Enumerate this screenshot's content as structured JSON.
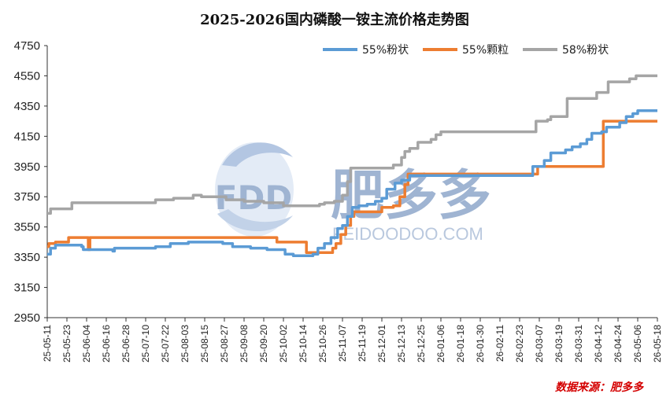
{
  "chart_data": {
    "type": "line",
    "title": "2025-2026国内磷酸一铵主流价格走势图",
    "source": "数据来源：肥多多",
    "watermark": {
      "logo": "FDD",
      "name": "肥多多",
      "url": "FEIDOODOO.COM"
    },
    "ylim": [
      2950,
      4750
    ],
    "yticks": [
      2950,
      3150,
      3350,
      3550,
      3750,
      3950,
      4150,
      4350,
      4550,
      4750
    ],
    "x_start": "2025-05-11",
    "x_end": "2026-05-18",
    "x_tick_labels": [
      "25-05-11",
      "25-05-23",
      "25-06-04",
      "25-06-16",
      "25-06-28",
      "25-07-10",
      "25-07-22",
      "25-08-03",
      "25-08-15",
      "25-08-27",
      "25-09-08",
      "25-09-20",
      "25-10-02",
      "25-10-14",
      "25-10-26",
      "25-11-07",
      "25-11-19",
      "25-12-01",
      "25-12-13",
      "25-12-25",
      "26-01-06",
      "26-01-18",
      "26-01-30",
      "26-02-11",
      "26-02-23",
      "26-03-07",
      "26-03-19",
      "26-03-31",
      "26-04-12",
      "26-04-24",
      "26-05-06",
      "26-05-18"
    ],
    "legend_position": "top",
    "grid": false,
    "series": [
      {
        "name": "55%粉状",
        "color": "#5b9bd5",
        "points": [
          [
            "2025-05-11",
            3370
          ],
          [
            "2025-05-13",
            3410
          ],
          [
            "2025-05-16",
            3430
          ],
          [
            "2025-06-01",
            3420
          ],
          [
            "2025-06-02",
            3400
          ],
          [
            "2025-06-20",
            3390
          ],
          [
            "2025-06-21",
            3410
          ],
          [
            "2025-07-15",
            3410
          ],
          [
            "2025-07-16",
            3420
          ],
          [
            "2025-07-25",
            3440
          ],
          [
            "2025-08-05",
            3450
          ],
          [
            "2025-08-26",
            3440
          ],
          [
            "2025-09-01",
            3420
          ],
          [
            "2025-09-12",
            3410
          ],
          [
            "2025-09-22",
            3400
          ],
          [
            "2025-10-03",
            3370
          ],
          [
            "2025-10-08",
            3360
          ],
          [
            "2025-10-20",
            3370
          ],
          [
            "2025-10-23",
            3410
          ],
          [
            "2025-10-27",
            3440
          ],
          [
            "2025-10-31",
            3480
          ],
          [
            "2025-11-04",
            3540
          ],
          [
            "2025-11-07",
            3560
          ],
          [
            "2025-11-10",
            3620
          ],
          [
            "2025-11-13",
            3680
          ],
          [
            "2025-11-17",
            3690
          ],
          [
            "2025-11-22",
            3700
          ],
          [
            "2025-11-27",
            3720
          ],
          [
            "2025-12-01",
            3740
          ],
          [
            "2025-12-04",
            3800
          ],
          [
            "2025-12-09",
            3840
          ],
          [
            "2025-12-13",
            3860
          ],
          [
            "2025-12-18",
            3890
          ],
          [
            "2026-01-01",
            3890
          ],
          [
            "2026-02-28",
            3890
          ],
          [
            "2026-03-03",
            3950
          ],
          [
            "2026-03-10",
            3990
          ],
          [
            "2026-03-14",
            4040
          ],
          [
            "2026-03-23",
            4060
          ],
          [
            "2026-03-27",
            4080
          ],
          [
            "2026-04-01",
            4100
          ],
          [
            "2026-04-05",
            4130
          ],
          [
            "2026-04-08",
            4170
          ],
          [
            "2026-04-14",
            4180
          ],
          [
            "2026-04-17",
            4210
          ],
          [
            "2026-04-25",
            4240
          ],
          [
            "2026-04-29",
            4280
          ],
          [
            "2026-05-03",
            4300
          ],
          [
            "2026-05-06",
            4320
          ],
          [
            "2026-05-18",
            4320
          ]
        ]
      },
      {
        "name": "55%颗粒",
        "color": "#ed7d31",
        "points": [
          [
            "2025-05-11",
            3420
          ],
          [
            "2025-05-12",
            3440
          ],
          [
            "2025-05-16",
            3450
          ],
          [
            "2025-05-24",
            3480
          ],
          [
            "2025-06-04",
            3480
          ],
          [
            "2025-06-05",
            3400
          ],
          [
            "2025-06-06",
            3480
          ],
          [
            "2025-09-27",
            3480
          ],
          [
            "2025-09-28",
            3450
          ],
          [
            "2025-10-15",
            3450
          ],
          [
            "2025-10-16",
            3380
          ],
          [
            "2025-10-31",
            3380
          ],
          [
            "2025-11-01",
            3410
          ],
          [
            "2025-11-03",
            3440
          ],
          [
            "2025-11-06",
            3500
          ],
          [
            "2025-11-09",
            3560
          ],
          [
            "2025-11-12",
            3620
          ],
          [
            "2025-11-14",
            3650
          ],
          [
            "2025-11-29",
            3650
          ],
          [
            "2025-12-01",
            3680
          ],
          [
            "2025-12-08",
            3690
          ],
          [
            "2025-12-12",
            3750
          ],
          [
            "2025-12-15",
            3830
          ],
          [
            "2025-12-17",
            3900
          ],
          [
            "2026-03-04",
            3900
          ],
          [
            "2026-03-06",
            3950
          ],
          [
            "2026-04-13",
            3950
          ],
          [
            "2026-04-15",
            4250
          ],
          [
            "2026-05-18",
            4250
          ]
        ]
      },
      {
        "name": "58%粉状",
        "color": "#a5a5a5",
        "points": [
          [
            "2025-05-11",
            3640
          ],
          [
            "2025-05-13",
            3670
          ],
          [
            "2025-05-25",
            3670
          ],
          [
            "2025-05-26",
            3710
          ],
          [
            "2025-07-15",
            3710
          ],
          [
            "2025-07-16",
            3730
          ],
          [
            "2025-07-27",
            3740
          ],
          [
            "2025-08-07",
            3740
          ],
          [
            "2025-08-08",
            3760
          ],
          [
            "2025-08-13",
            3750
          ],
          [
            "2025-08-26",
            3750
          ],
          [
            "2025-08-28",
            3730
          ],
          [
            "2025-09-08",
            3720
          ],
          [
            "2025-09-20",
            3710
          ],
          [
            "2025-10-02",
            3690
          ],
          [
            "2025-10-24",
            3700
          ],
          [
            "2025-10-27",
            3710
          ],
          [
            "2025-11-02",
            3720
          ],
          [
            "2025-11-07",
            3760
          ],
          [
            "2025-11-10",
            3850
          ],
          [
            "2025-11-12",
            3940
          ],
          [
            "2025-12-05",
            3940
          ],
          [
            "2025-12-08",
            3960
          ],
          [
            "2025-12-13",
            4010
          ],
          [
            "2025-12-15",
            4050
          ],
          [
            "2025-12-18",
            4070
          ],
          [
            "2025-12-23",
            4110
          ],
          [
            "2025-12-31",
            4130
          ],
          [
            "2026-01-03",
            4160
          ],
          [
            "2026-01-06",
            4180
          ],
          [
            "2026-03-03",
            4180
          ],
          [
            "2026-03-05",
            4250
          ],
          [
            "2026-03-12",
            4260
          ],
          [
            "2026-03-14",
            4280
          ],
          [
            "2026-03-22",
            4280
          ],
          [
            "2026-03-24",
            4400
          ],
          [
            "2026-04-10",
            4400
          ],
          [
            "2026-04-11",
            4440
          ],
          [
            "2026-04-18",
            4510
          ],
          [
            "2026-04-28",
            4510
          ],
          [
            "2026-05-01",
            4530
          ],
          [
            "2026-05-05",
            4550
          ],
          [
            "2026-05-18",
            4550
          ]
        ]
      }
    ]
  }
}
